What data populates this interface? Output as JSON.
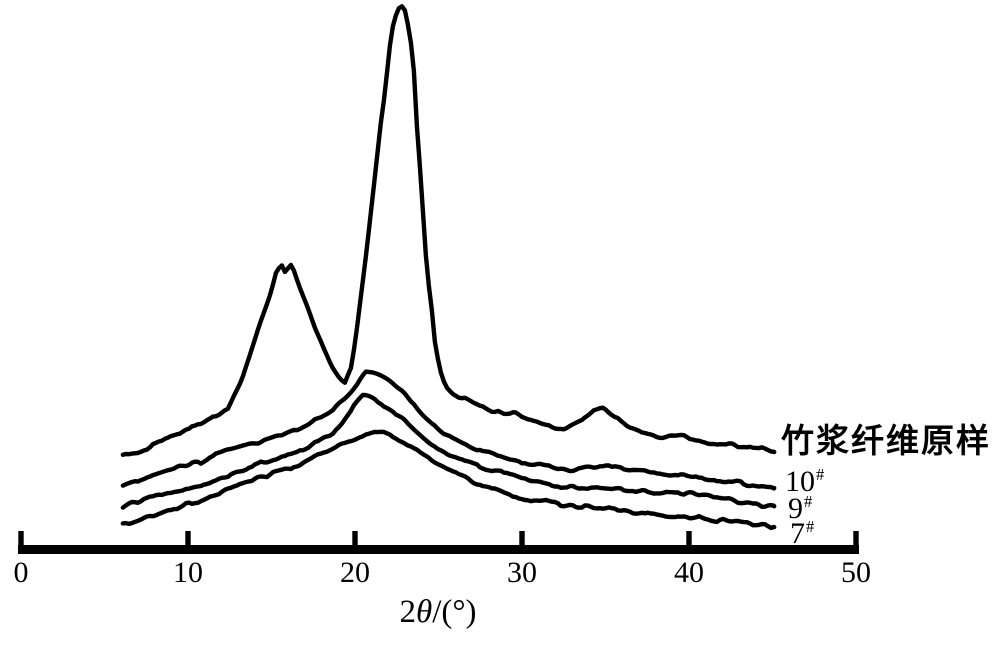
{
  "figure": {
    "background": "#ffffff",
    "line_color": "#000000"
  },
  "axis": {
    "tick_labels": [
      "0",
      "10",
      "20",
      "30",
      "40",
      "50"
    ],
    "title_num": "2",
    "title_theta": "θ",
    "title_rest": "/(°)"
  },
  "chart_data": {
    "type": "line",
    "title": "",
    "xlabel": "2θ/(°)",
    "ylabel": "",
    "xlim": [
      0,
      50
    ],
    "ylim": [
      0,
      100
    ],
    "x_ticks": [
      0,
      10,
      20,
      30,
      40,
      50
    ],
    "grid": false,
    "y_axis_visible": false,
    "legend_position": "right of curve ends",
    "intensity_units": "arbitrary (no y-axis shown); values normalized 0-100",
    "series": [
      {
        "name": "竹浆纤维原样",
        "label_base": "竹浆纤维原样",
        "label_sup": "",
        "points": [
          [
            6.1,
            18.6
          ],
          [
            7.2,
            19.6
          ],
          [
            8.4,
            21.1
          ],
          [
            9.6,
            22.9
          ],
          [
            10.8,
            24.3
          ],
          [
            11.7,
            25.9
          ],
          [
            12.4,
            27.1
          ],
          [
            13.2,
            32
          ],
          [
            13.8,
            37.5
          ],
          [
            14.4,
            43
          ],
          [
            15,
            48.2
          ],
          [
            15.3,
            51.8
          ],
          [
            15.6,
            52.7
          ],
          [
            15.8,
            51.5
          ],
          [
            16.2,
            53
          ],
          [
            16.6,
            49.5
          ],
          [
            17.1,
            45.5
          ],
          [
            17.6,
            41.5
          ],
          [
            18.1,
            37.9
          ],
          [
            18.6,
            34.6
          ],
          [
            19.1,
            32.4
          ],
          [
            19.4,
            31.8
          ],
          [
            19.8,
            34.8
          ],
          [
            20.1,
            41.1
          ],
          [
            20.4,
            48.2
          ],
          [
            20.7,
            55.4
          ],
          [
            21,
            63.4
          ],
          [
            21.3,
            71.4
          ],
          [
            21.5,
            77.1
          ],
          [
            21.8,
            83.6
          ],
          [
            22,
            89.6
          ],
          [
            22.2,
            94.6
          ],
          [
            22.5,
            97.9
          ],
          [
            22.7,
            99.1
          ],
          [
            22.9,
            99.3
          ],
          [
            23.1,
            96.8
          ],
          [
            23.4,
            91.4
          ],
          [
            23.6,
            84.8
          ],
          [
            23.7,
            77.7
          ],
          [
            23.9,
            69.6
          ],
          [
            24.1,
            60.7
          ],
          [
            24.3,
            51.8
          ],
          [
            24.6,
            44.6
          ],
          [
            24.8,
            38.4
          ],
          [
            25.1,
            33.9
          ],
          [
            25.4,
            31.3
          ],
          [
            25.8,
            30
          ],
          [
            26.2,
            29.1
          ],
          [
            26.7,
            28.6
          ],
          [
            27.1,
            27.9
          ],
          [
            27.6,
            27.3
          ],
          [
            28.2,
            26.6
          ],
          [
            28.8,
            26.1
          ],
          [
            29.5,
            26.3
          ],
          [
            30.1,
            25.4
          ],
          [
            30.8,
            24.8
          ],
          [
            31.4,
            24.1
          ],
          [
            32,
            23.6
          ],
          [
            32.5,
            23.2
          ],
          [
            33.2,
            24.6
          ],
          [
            33.8,
            25.5
          ],
          [
            34.3,
            26.6
          ],
          [
            34.9,
            27.1
          ],
          [
            35.4,
            25.9
          ],
          [
            35.9,
            24.8
          ],
          [
            36.5,
            23.8
          ],
          [
            37.1,
            23
          ],
          [
            37.8,
            22.3
          ],
          [
            38.5,
            22
          ],
          [
            39.2,
            22.5
          ],
          [
            39.8,
            22
          ],
          [
            40.5,
            21.4
          ],
          [
            41.2,
            21.1
          ],
          [
            42,
            20.7
          ],
          [
            42.7,
            20.4
          ],
          [
            43.5,
            20
          ],
          [
            44.4,
            19.8
          ],
          [
            45.1,
            19.5
          ]
        ]
      },
      {
        "name": "10#",
        "label_base": "10",
        "label_sup": "#",
        "points": [
          [
            6.1,
            13.2
          ],
          [
            7.2,
            14.3
          ],
          [
            8.4,
            15.7
          ],
          [
            9.6,
            17
          ],
          [
            10.8,
            17.5
          ],
          [
            11.7,
            18.8
          ],
          [
            12.6,
            19.6
          ],
          [
            13.5,
            20.5
          ],
          [
            14.4,
            21.3
          ],
          [
            15.3,
            22.1
          ],
          [
            16.2,
            22.9
          ],
          [
            17.1,
            24.1
          ],
          [
            17.8,
            25.4
          ],
          [
            18.6,
            26.8
          ],
          [
            19.3,
            28.6
          ],
          [
            19.9,
            30.4
          ],
          [
            20.4,
            32.5
          ],
          [
            20.7,
            33.8
          ],
          [
            21.1,
            33.6
          ],
          [
            21.6,
            32.9
          ],
          [
            22.1,
            32
          ],
          [
            22.5,
            30.9
          ],
          [
            23,
            29.6
          ],
          [
            23.5,
            28
          ],
          [
            24,
            26.1
          ],
          [
            24.6,
            24.5
          ],
          [
            25.2,
            23
          ],
          [
            25.8,
            21.8
          ],
          [
            26.4,
            20.9
          ],
          [
            27.1,
            20
          ],
          [
            27.9,
            19.3
          ],
          [
            28.8,
            18.4
          ],
          [
            29.7,
            17.7
          ],
          [
            30.6,
            17.3
          ],
          [
            31.5,
            16.8
          ],
          [
            32.3,
            16.4
          ],
          [
            33,
            16.1
          ],
          [
            33.7,
            16.4
          ],
          [
            34.5,
            16.6
          ],
          [
            35.2,
            17
          ],
          [
            36,
            16.4
          ],
          [
            36.8,
            16.1
          ],
          [
            37.7,
            15.7
          ],
          [
            38.6,
            15.2
          ],
          [
            39.5,
            15
          ],
          [
            40.3,
            14.8
          ],
          [
            41.2,
            14.5
          ],
          [
            42.1,
            14.1
          ],
          [
            43,
            13.8
          ],
          [
            43.9,
            13.4
          ],
          [
            44.7,
            13
          ],
          [
            45.1,
            12.9
          ]
        ]
      },
      {
        "name": "9#",
        "label_base": "9",
        "label_sup": "#",
        "points": [
          [
            6.1,
            9.6
          ],
          [
            7.2,
            10.7
          ],
          [
            8.4,
            11.8
          ],
          [
            9.6,
            12.7
          ],
          [
            10.8,
            13.4
          ],
          [
            11.7,
            14.3
          ],
          [
            12.6,
            15.4
          ],
          [
            13.5,
            16.4
          ],
          [
            14.4,
            17.5
          ],
          [
            15.3,
            18.2
          ],
          [
            16.2,
            19.1
          ],
          [
            17.1,
            20
          ],
          [
            17.8,
            21.1
          ],
          [
            18.6,
            22.5
          ],
          [
            19.2,
            24.3
          ],
          [
            19.7,
            26.4
          ],
          [
            20,
            28.2
          ],
          [
            20.4,
            29.1
          ],
          [
            20.7,
            29.3
          ],
          [
            21.2,
            28.8
          ],
          [
            21.6,
            27.9
          ],
          [
            22.2,
            26.8
          ],
          [
            22.7,
            25.5
          ],
          [
            23.3,
            24.1
          ],
          [
            23.8,
            22.7
          ],
          [
            24.3,
            21.3
          ],
          [
            24.9,
            20
          ],
          [
            25.6,
            18.8
          ],
          [
            26.3,
            17.9
          ],
          [
            27,
            17.1
          ],
          [
            27.8,
            16.4
          ],
          [
            28.6,
            15.7
          ],
          [
            29.4,
            15.2
          ],
          [
            30.2,
            14.6
          ],
          [
            31.1,
            13.9
          ],
          [
            31.9,
            13.2
          ],
          [
            32.7,
            13
          ],
          [
            33.5,
            12.9
          ],
          [
            34.2,
            13
          ],
          [
            34.9,
            12.9
          ],
          [
            35.7,
            12.7
          ],
          [
            36.5,
            12.5
          ],
          [
            37.3,
            12.3
          ],
          [
            38.2,
            12.1
          ],
          [
            39,
            12.1
          ],
          [
            39.8,
            12
          ],
          [
            40.7,
            11.8
          ],
          [
            41.5,
            11.3
          ],
          [
            42.4,
            10.9
          ],
          [
            43.2,
            10.4
          ],
          [
            44.1,
            10
          ],
          [
            44.8,
            9.6
          ],
          [
            45.1,
            9.5
          ]
        ]
      },
      {
        "name": "7#",
        "label_base": "7",
        "label_sup": "#",
        "points": [
          [
            6.1,
            6.4
          ],
          [
            7.2,
            7.3
          ],
          [
            8.4,
            8.4
          ],
          [
            9.6,
            9.6
          ],
          [
            10.8,
            10.7
          ],
          [
            11.7,
            11.8
          ],
          [
            12.6,
            12.9
          ],
          [
            13.5,
            13.9
          ],
          [
            14.4,
            14.8
          ],
          [
            15.3,
            15.7
          ],
          [
            16.2,
            16.6
          ],
          [
            17.1,
            17.7
          ],
          [
            17.8,
            18.8
          ],
          [
            18.6,
            19.6
          ],
          [
            19.3,
            20.7
          ],
          [
            20,
            21.6
          ],
          [
            20.6,
            22.3
          ],
          [
            21.2,
            22.7
          ],
          [
            21.8,
            22.7
          ],
          [
            22.3,
            22.1
          ],
          [
            22.8,
            21.3
          ],
          [
            23.4,
            20.2
          ],
          [
            23.9,
            19.1
          ],
          [
            24.5,
            18
          ],
          [
            25.1,
            17.1
          ],
          [
            25.7,
            16.1
          ],
          [
            26.3,
            15.2
          ],
          [
            27,
            14.1
          ],
          [
            27.8,
            13
          ],
          [
            28.5,
            12.3
          ],
          [
            29.3,
            11.6
          ],
          [
            30,
            11.1
          ],
          [
            30.8,
            10.7
          ],
          [
            31.5,
            10.4
          ],
          [
            32.2,
            10
          ],
          [
            32.9,
            9.6
          ],
          [
            33.7,
            9.5
          ],
          [
            34.4,
            9.3
          ],
          [
            35.1,
            9.3
          ],
          [
            35.8,
            8.9
          ],
          [
            36.6,
            8.6
          ],
          [
            37.4,
            8.2
          ],
          [
            38.3,
            8
          ],
          [
            39.1,
            7.9
          ],
          [
            40,
            7.7
          ],
          [
            40.8,
            7.5
          ],
          [
            41.6,
            7.1
          ],
          [
            42.5,
            6.8
          ],
          [
            43.3,
            6.6
          ],
          [
            44.2,
            6.3
          ],
          [
            44.8,
            6.1
          ],
          [
            45.1,
            6.1
          ]
        ]
      }
    ]
  }
}
